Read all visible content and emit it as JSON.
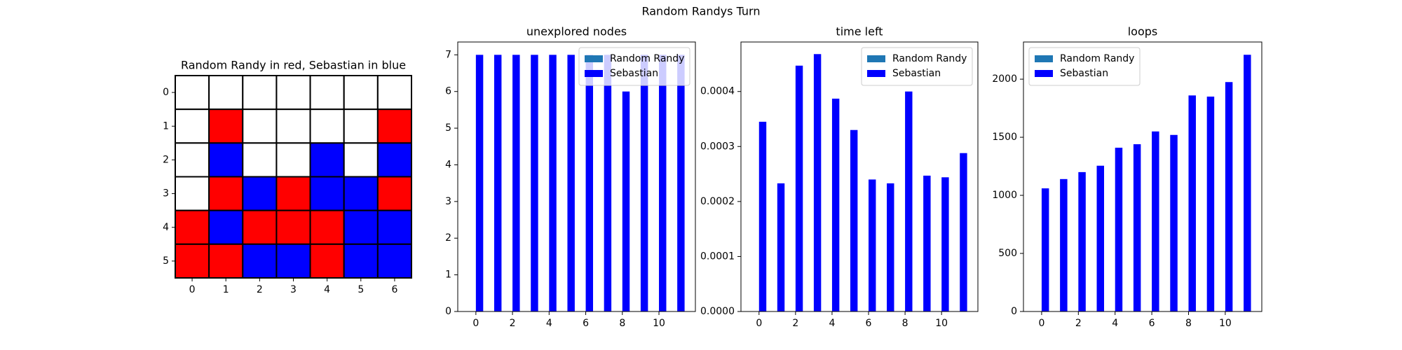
{
  "title": "Random Randys Turn",
  "chart_data": [
    {
      "type": "grid",
      "title": "Random Randy in red, Sebastian in blue",
      "cells": [
        [
          "white",
          "white",
          "white",
          "white",
          "white",
          "white",
          "white"
        ],
        [
          "white",
          "red",
          "white",
          "white",
          "white",
          "white",
          "red"
        ],
        [
          "white",
          "blue",
          "white",
          "white",
          "blue",
          "white",
          "blue"
        ],
        [
          "white",
          "red",
          "blue",
          "red",
          "blue",
          "blue",
          "red"
        ],
        [
          "red",
          "blue",
          "red",
          "red",
          "red",
          "blue",
          "blue"
        ],
        [
          "red",
          "red",
          "blue",
          "blue",
          "red",
          "blue",
          "blue"
        ]
      ],
      "xlim": [
        -0.5,
        6.5
      ],
      "ylim": [
        5.5,
        -0.5
      ],
      "xticks": [
        0,
        1,
        2,
        3,
        4,
        5,
        6
      ],
      "yticks": [
        0,
        1,
        2,
        3,
        4,
        5
      ]
    },
    {
      "type": "bar",
      "title": "unexplored nodes",
      "x": [
        0,
        1,
        2,
        3,
        4,
        5,
        6,
        7,
        8,
        9,
        10,
        11
      ],
      "series": [
        {
          "name": "Random Randy",
          "color": "#1f77b4",
          "values": [
            0,
            0,
            0,
            0,
            0,
            0,
            0,
            0,
            0,
            0,
            0,
            0
          ]
        },
        {
          "name": "Sebastian",
          "color": "#0000ff",
          "values": [
            7,
            7,
            7,
            7,
            7,
            7,
            7,
            7,
            6,
            7,
            7,
            7
          ]
        }
      ],
      "xlim": [
        -0.99,
        11.99
      ],
      "xticks": [
        0,
        2,
        4,
        6,
        8,
        10
      ],
      "ylim": [
        0,
        7.35
      ],
      "yticks": [
        0,
        1,
        2,
        3,
        4,
        5,
        6,
        7
      ],
      "legend": "upper right"
    },
    {
      "type": "bar",
      "title": "time left",
      "x": [
        0,
        1,
        2,
        3,
        4,
        5,
        6,
        7,
        8,
        9,
        10,
        11
      ],
      "series": [
        {
          "name": "Random Randy",
          "color": "#1f77b4",
          "values": [
            0,
            0,
            0,
            0,
            0,
            0,
            0,
            0,
            0,
            0,
            0,
            0
          ]
        },
        {
          "name": "Sebastian",
          "color": "#0000ff",
          "values": [
            0.000345,
            0.000233,
            0.000447,
            0.000468,
            0.000387,
            0.00033,
            0.00024,
            0.000233,
            0.0004,
            0.000247,
            0.000244,
            0.000288
          ]
        }
      ],
      "xlim": [
        -0.99,
        11.99
      ],
      "xticks": [
        0,
        2,
        4,
        6,
        8,
        10
      ],
      "ylim": [
        0,
        0.00049
      ],
      "yticks": [
        {
          "value": 0,
          "label": "0.0000"
        },
        {
          "value": 0.0001,
          "label": "0.0001"
        },
        {
          "value": 0.0002,
          "label": "0.0002"
        },
        {
          "value": 0.0003,
          "label": "0.0003"
        },
        {
          "value": 0.0004,
          "label": "0.0004"
        }
      ],
      "legend": "upper right"
    },
    {
      "type": "bar",
      "title": "loops",
      "x": [
        0,
        1,
        2,
        3,
        4,
        5,
        6,
        7,
        8,
        9,
        10,
        11
      ],
      "series": [
        {
          "name": "Random Randy",
          "color": "#1f77b4",
          "values": [
            0,
            0,
            0,
            0,
            0,
            0,
            0,
            0,
            0,
            0,
            0,
            0
          ]
        },
        {
          "name": "Sebastian",
          "color": "#0000ff",
          "values": [
            1060,
            1140,
            1200,
            1255,
            1410,
            1440,
            1550,
            1520,
            1860,
            1850,
            1975,
            2210
          ]
        }
      ],
      "xlim": [
        -0.99,
        11.99
      ],
      "xticks": [
        0,
        2,
        4,
        6,
        8,
        10
      ],
      "ylim": [
        0,
        2320
      ],
      "yticks": [
        0,
        500,
        1000,
        1500,
        2000
      ],
      "legend": "upper left"
    }
  ]
}
